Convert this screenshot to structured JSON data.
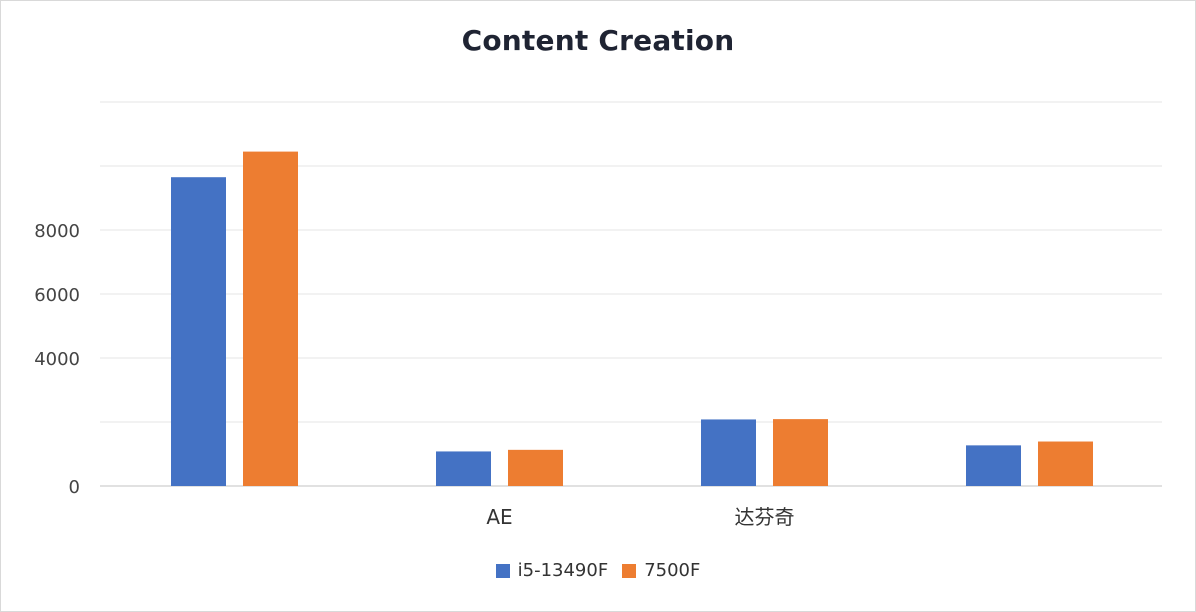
{
  "chart_data": {
    "type": "bar",
    "title": "Content Creation",
    "categories": [
      "",
      "AE",
      "达芬奇",
      ""
    ],
    "series": [
      {
        "name": "i5-13490F",
        "color": "#4472C4",
        "values": [
          9650,
          1080,
          2080,
          1270
        ]
      },
      {
        "name": "7500F",
        "color": "#ED7D31",
        "values": [
          10450,
          1130,
          2090,
          1390
        ]
      }
    ],
    "y_tick_labels": [
      "0",
      "4000",
      "6000",
      "8000"
    ],
    "y_tick_values": [
      0,
      4000,
      6000,
      8000
    ],
    "gridlines": [
      0,
      2000,
      4000,
      6000,
      8000,
      10000,
      12000
    ],
    "ylim": [
      0,
      12000
    ],
    "xlabel": "",
    "ylabel": "",
    "legend_position": "bottom",
    "grid": true
  }
}
